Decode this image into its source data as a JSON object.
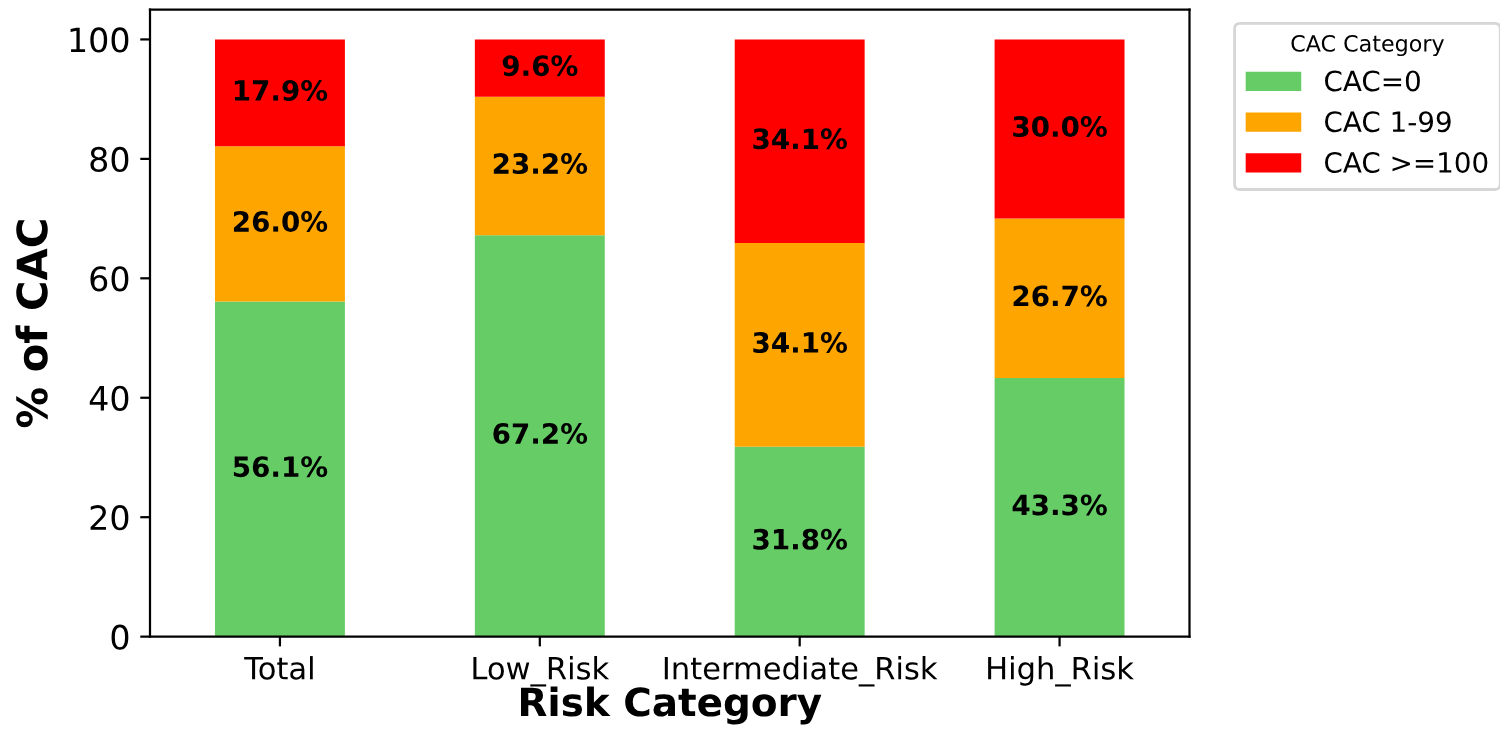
{
  "chart_data": {
    "type": "bar",
    "stacked": true,
    "xlabel": "Risk Category",
    "ylabel": "% of CAC",
    "legend_title": "CAC Category",
    "legend": "top right",
    "categories": [
      "Total",
      "Low_Risk",
      "Intermediate_Risk",
      "High_Risk"
    ],
    "ylim": [
      0,
      105
    ],
    "yticks": [
      0,
      20,
      40,
      60,
      80,
      100
    ],
    "grid": false,
    "series": [
      {
        "name": "CAC=0",
        "color": "#66cc66",
        "values": [
          56.1,
          67.2,
          31.8,
          43.3
        ],
        "value_labels": [
          "56.1%",
          "67.2%",
          "31.8%",
          "43.3%"
        ]
      },
      {
        "name": "CAC 1-99",
        "color": "#ffa500",
        "values": [
          26.0,
          23.2,
          34.1,
          26.7
        ],
        "value_labels": [
          "26.0%",
          "23.2%",
          "34.1%",
          "26.7%"
        ]
      },
      {
        "name": "CAC >=100",
        "color": "#ff0000",
        "values": [
          17.9,
          9.6,
          34.1,
          30.0
        ],
        "value_labels": [
          "17.9%",
          "9.6%",
          "34.1%",
          "30.0%"
        ]
      }
    ]
  }
}
